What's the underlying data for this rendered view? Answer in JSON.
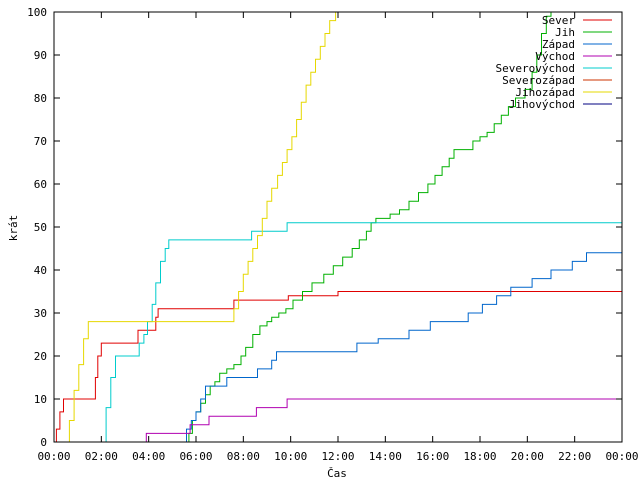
{
  "chart_data": {
    "type": "line",
    "title": "",
    "xlabel": "Čas",
    "ylabel": "krát",
    "xlim": [
      0,
      24
    ],
    "ylim": [
      0,
      100
    ],
    "x_unit": "hours",
    "x_ticks": [
      0,
      2,
      4,
      6,
      8,
      10,
      12,
      14,
      16,
      18,
      20,
      22,
      24
    ],
    "x_tick_labels": [
      "00:00",
      "02:00",
      "04:00",
      "06:00",
      "08:00",
      "10:00",
      "12:00",
      "14:00",
      "16:00",
      "18:00",
      "20:00",
      "22:00",
      "00:00"
    ],
    "y_ticks": [
      0,
      10,
      20,
      30,
      40,
      50,
      60,
      70,
      80,
      90,
      100
    ],
    "y_tick_labels": [
      "0",
      "10",
      "20",
      "30",
      "40",
      "50",
      "60",
      "70",
      "80",
      "90",
      "100"
    ],
    "grid": false,
    "legend_position": "top-right",
    "line_style": "step",
    "series": [
      {
        "name": "Sever",
        "color": "#e00000",
        "points": [
          [
            0.0,
            0
          ],
          [
            0.1,
            3
          ],
          [
            0.25,
            7
          ],
          [
            0.4,
            10
          ],
          [
            1.6,
            10
          ],
          [
            1.75,
            15
          ],
          [
            1.85,
            20
          ],
          [
            2.0,
            23
          ],
          [
            3.4,
            23
          ],
          [
            3.55,
            26
          ],
          [
            4.15,
            26
          ],
          [
            4.3,
            29
          ],
          [
            4.4,
            31
          ],
          [
            7.5,
            31
          ],
          [
            7.6,
            33
          ],
          [
            9.8,
            33
          ],
          [
            9.9,
            34
          ],
          [
            11.8,
            34
          ],
          [
            12.0,
            35
          ],
          [
            24.0,
            35
          ]
        ]
      },
      {
        "name": "Jih",
        "color": "#00b000",
        "points": [
          [
            5.6,
            0
          ],
          [
            5.7,
            2
          ],
          [
            5.85,
            5
          ],
          [
            6.0,
            7
          ],
          [
            6.2,
            9
          ],
          [
            6.4,
            11
          ],
          [
            6.6,
            13
          ],
          [
            6.8,
            14
          ],
          [
            7.0,
            16
          ],
          [
            7.3,
            17
          ],
          [
            7.6,
            18
          ],
          [
            7.9,
            20
          ],
          [
            8.1,
            22
          ],
          [
            8.4,
            25
          ],
          [
            8.7,
            27
          ],
          [
            9.0,
            28
          ],
          [
            9.2,
            29
          ],
          [
            9.5,
            30
          ],
          [
            9.8,
            31
          ],
          [
            10.1,
            33
          ],
          [
            10.5,
            35
          ],
          [
            10.9,
            37
          ],
          [
            11.4,
            39
          ],
          [
            11.8,
            41
          ],
          [
            12.2,
            43
          ],
          [
            12.6,
            45
          ],
          [
            12.9,
            47
          ],
          [
            13.2,
            49
          ],
          [
            13.4,
            51
          ],
          [
            13.6,
            52
          ],
          [
            14.2,
            53
          ],
          [
            14.6,
            54
          ],
          [
            15.0,
            56
          ],
          [
            15.4,
            58
          ],
          [
            15.8,
            60
          ],
          [
            16.1,
            62
          ],
          [
            16.4,
            64
          ],
          [
            16.7,
            66
          ],
          [
            16.9,
            68
          ],
          [
            17.5,
            68
          ],
          [
            17.7,
            70
          ],
          [
            18.0,
            71
          ],
          [
            18.3,
            72
          ],
          [
            18.6,
            74
          ],
          [
            18.9,
            76
          ],
          [
            19.2,
            78
          ],
          [
            19.5,
            80
          ],
          [
            19.9,
            82
          ],
          [
            20.2,
            86
          ],
          [
            20.4,
            90
          ],
          [
            20.6,
            95
          ],
          [
            20.8,
            99
          ],
          [
            21.0,
            100
          ]
        ]
      },
      {
        "name": "Západ",
        "color": "#0066cc",
        "points": [
          [
            5.4,
            0
          ],
          [
            5.6,
            3
          ],
          [
            5.8,
            5
          ],
          [
            6.0,
            7
          ],
          [
            6.2,
            10
          ],
          [
            6.4,
            13
          ],
          [
            7.1,
            13
          ],
          [
            7.3,
            15
          ],
          [
            8.4,
            15
          ],
          [
            8.6,
            17
          ],
          [
            9.0,
            17
          ],
          [
            9.2,
            19
          ],
          [
            9.4,
            21
          ],
          [
            12.6,
            21
          ],
          [
            12.8,
            23
          ],
          [
            13.5,
            23
          ],
          [
            13.7,
            24
          ],
          [
            14.8,
            24
          ],
          [
            15.0,
            26
          ],
          [
            15.7,
            26
          ],
          [
            15.9,
            28
          ],
          [
            17.3,
            28
          ],
          [
            17.5,
            30
          ],
          [
            17.9,
            30
          ],
          [
            18.1,
            32
          ],
          [
            18.5,
            32
          ],
          [
            18.7,
            34
          ],
          [
            19.1,
            34
          ],
          [
            19.3,
            36
          ],
          [
            20.0,
            36
          ],
          [
            20.2,
            38
          ],
          [
            20.8,
            38
          ],
          [
            21.0,
            40
          ],
          [
            21.7,
            40
          ],
          [
            21.9,
            42
          ],
          [
            22.3,
            42
          ],
          [
            22.5,
            44
          ],
          [
            24.0,
            44
          ]
        ]
      },
      {
        "name": "Východ",
        "color": "#b000b0",
        "points": [
          [
            3.8,
            0
          ],
          [
            3.9,
            2
          ],
          [
            5.6,
            2
          ],
          [
            5.75,
            4
          ],
          [
            6.4,
            4
          ],
          [
            6.55,
            6
          ],
          [
            8.4,
            6
          ],
          [
            8.55,
            8
          ],
          [
            9.7,
            8
          ],
          [
            9.85,
            10
          ],
          [
            24.0,
            10
          ]
        ]
      },
      {
        "name": "Severovýchod",
        "color": "#00cccc",
        "points": [
          [
            2.0,
            0
          ],
          [
            2.2,
            8
          ],
          [
            2.4,
            15
          ],
          [
            2.6,
            20
          ],
          [
            3.4,
            20
          ],
          [
            3.6,
            23
          ],
          [
            3.8,
            25
          ],
          [
            3.95,
            28
          ],
          [
            4.15,
            32
          ],
          [
            4.3,
            37
          ],
          [
            4.5,
            42
          ],
          [
            4.7,
            45
          ],
          [
            4.85,
            47
          ],
          [
            8.2,
            47
          ],
          [
            8.35,
            49
          ],
          [
            9.7,
            49
          ],
          [
            9.85,
            51
          ],
          [
            24.0,
            51
          ]
        ]
      },
      {
        "name": "Severozápad",
        "color": "#cc3300",
        "points": []
      },
      {
        "name": "Jihozápad",
        "color": "#e6d800",
        "points": [
          [
            0.45,
            0
          ],
          [
            0.65,
            5
          ],
          [
            0.85,
            12
          ],
          [
            1.05,
            18
          ],
          [
            1.25,
            24
          ],
          [
            1.45,
            28
          ],
          [
            7.4,
            28
          ],
          [
            7.6,
            31
          ],
          [
            7.8,
            35
          ],
          [
            8.0,
            39
          ],
          [
            8.2,
            42
          ],
          [
            8.4,
            45
          ],
          [
            8.6,
            48
          ],
          [
            8.8,
            52
          ],
          [
            9.0,
            56
          ],
          [
            9.2,
            59
          ],
          [
            9.45,
            62
          ],
          [
            9.65,
            65
          ],
          [
            9.85,
            68
          ],
          [
            10.05,
            71
          ],
          [
            10.25,
            75
          ],
          [
            10.45,
            79
          ],
          [
            10.65,
            83
          ],
          [
            10.85,
            86
          ],
          [
            11.05,
            89
          ],
          [
            11.25,
            92
          ],
          [
            11.45,
            95
          ],
          [
            11.65,
            98
          ],
          [
            11.9,
            100
          ]
        ]
      },
      {
        "name": "Jihovýchod",
        "color": "#000080",
        "points": []
      }
    ]
  }
}
